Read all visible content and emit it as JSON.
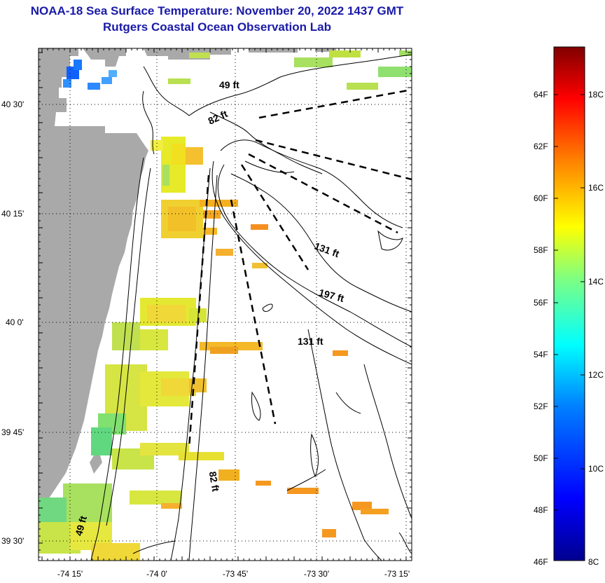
{
  "title": {
    "line1": "NOAA-18 Sea Surface Temperature:  November 20, 2022 1437 GMT",
    "line2": "Rutgers Coastal Ocean Observation Lab"
  },
  "map": {
    "lat_ticks": [
      "40 30'",
      "40 15'",
      "40 0'",
      "39 45'",
      "39 30'"
    ],
    "lon_ticks": [
      "-74 15'",
      "-74 0'",
      "-73 45'",
      "-73 30'",
      "-73 15'"
    ],
    "depth_labels": [
      "49 ft",
      "82 ft",
      "131 ft",
      "197 ft",
      "131 ft",
      "82 ft",
      "49 ft"
    ],
    "colors": {
      "land": "#a9a9a9",
      "frame": "#000000"
    }
  },
  "colorbar": {
    "fahrenheit_labels": [
      "64F",
      "62F",
      "60F",
      "58F",
      "56F",
      "54F",
      "52F",
      "50F",
      "48F",
      "46F"
    ],
    "celsius_labels": [
      "18C",
      "16C",
      "14C",
      "12C",
      "10C",
      "8C"
    ],
    "range_f": [
      46,
      65.4
    ],
    "colormap": [
      "#00008f",
      "#0000ff",
      "#0080ff",
      "#00ffff",
      "#80ff80",
      "#ffff00",
      "#ff8000",
      "#ff0000",
      "#800000"
    ]
  }
}
